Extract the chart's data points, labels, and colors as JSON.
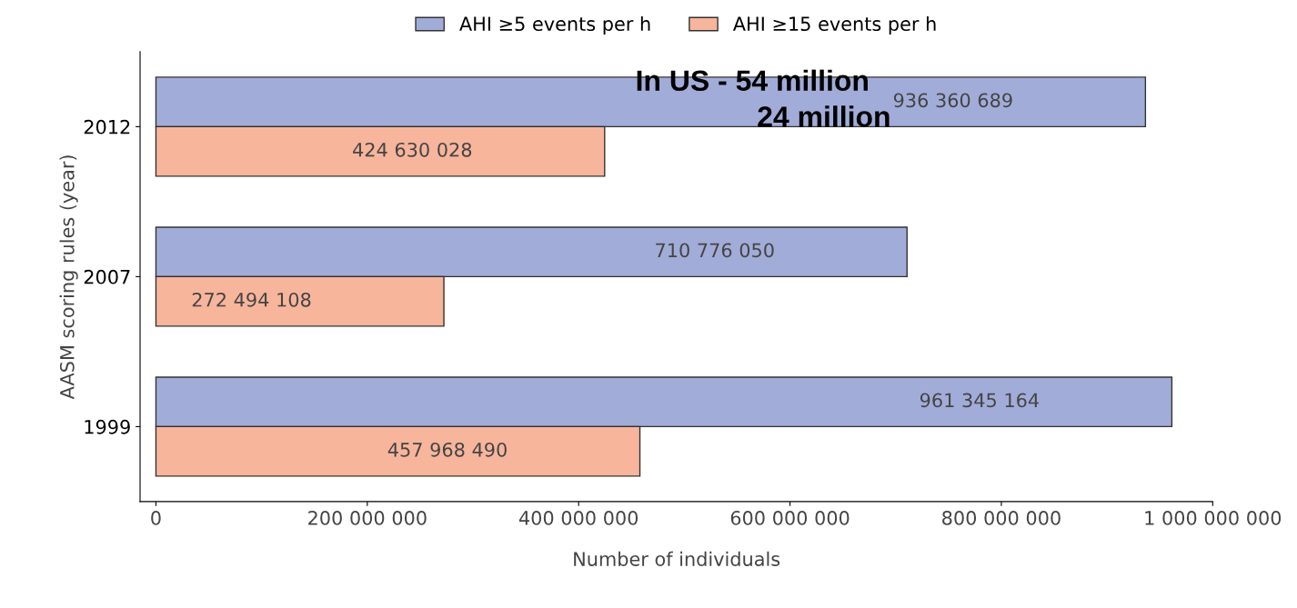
{
  "chart_data": {
    "type": "bar",
    "orientation": "horizontal",
    "xlabel": "Number of individuals",
    "ylabel": "AASM scoring rules (year)",
    "categories": [
      "2012",
      "2007",
      "1999"
    ],
    "series": [
      {
        "name": "AHI ≥5 events per h",
        "color": "#a2acd8",
        "values": [
          936360689,
          710776050,
          961345164
        ],
        "value_labels": [
          "936 360 689",
          "710 776 050",
          "961 345 164"
        ]
      },
      {
        "name": "AHI ≥15 events per h",
        "color": "#f7b59c",
        "values": [
          424630028,
          272494108,
          457968490
        ],
        "value_labels": [
          "424 630 028",
          "272 494 108",
          "457 968 490"
        ]
      }
    ],
    "xlim": [
      -15000000,
      1000000000
    ],
    "xticks": [
      0,
      {
        "value": 200000000,
        "label": "200 000 000"
      },
      {
        "value": 400000000,
        "label": "400 000 000"
      },
      {
        "value": 600000000,
        "label": "600 000 000"
      },
      {
        "value": 800000000,
        "label": "800 000 000"
      },
      {
        "value": 1000000000,
        "label": "1 000 000 000"
      }
    ],
    "annotations": [
      "In US - 54 million",
      "24 million"
    ],
    "legend": "top",
    "grid": false
  }
}
